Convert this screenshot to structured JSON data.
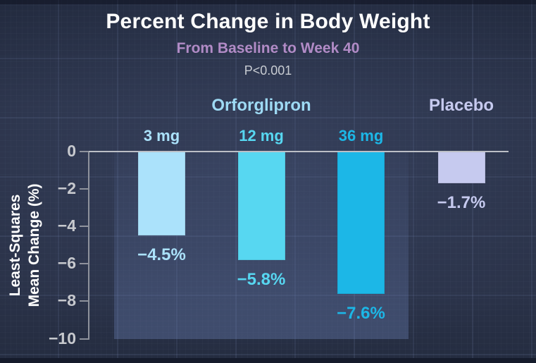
{
  "header": {
    "title": "Percent Change in Body Weight",
    "subtitle": "From Baseline to Week 40",
    "p_value": "P<0.001"
  },
  "groups": [
    {
      "label": "Orforglipron",
      "color": "#9EDAF4"
    },
    {
      "label": "Placebo",
      "color": "#C6CAEF"
    }
  ],
  "y_axis": {
    "title_line1": "Least-Squares",
    "title_line2": "Mean Change (%)",
    "tick_labels": [
      "0",
      "−2",
      "−4",
      "−6",
      "−8",
      "−10"
    ],
    "tick_values": [
      0,
      -2,
      -4,
      -6,
      -8,
      -10
    ]
  },
  "chart_data": {
    "type": "bar",
    "title": "Percent Change in Body Weight",
    "subtitle": "From Baseline to Week 40",
    "annotation": "P<0.001",
    "ylabel": "Least-Squares Mean Change (%)",
    "ylim": [
      -10,
      0
    ],
    "grid": false,
    "legend": "none",
    "categories": [
      "Orforglipron 3 mg",
      "Orforglipron 12 mg",
      "Orforglipron 36 mg",
      "Placebo"
    ],
    "bars": [
      {
        "dose_label": "3 mg",
        "group": "Orforglipron",
        "value": -4.5,
        "label": "−4.5%",
        "color": "#ABE2FB"
      },
      {
        "dose_label": "12 mg",
        "group": "Orforglipron",
        "value": -5.8,
        "label": "−5.8%",
        "color": "#57D7F1"
      },
      {
        "dose_label": "36 mg",
        "group": "Orforglipron",
        "value": -7.6,
        "label": "−7.6%",
        "color": "#1CB7E7"
      },
      {
        "dose_label": "",
        "group": "Placebo",
        "value": -1.7,
        "label": "−1.7%",
        "color": "#C6CAEF"
      }
    ]
  },
  "colors": {
    "background": "#2A3248",
    "axis": "#8E929C",
    "zero_line": "#BCBFC6",
    "tick_label": "#C7C9CE",
    "title": "#FFFFFF",
    "subtitle": "#B18BC6",
    "p_value": "#C8CCD2",
    "orforglipron_header": "#9EDAF4",
    "placebo_header": "#C6CAEF"
  }
}
